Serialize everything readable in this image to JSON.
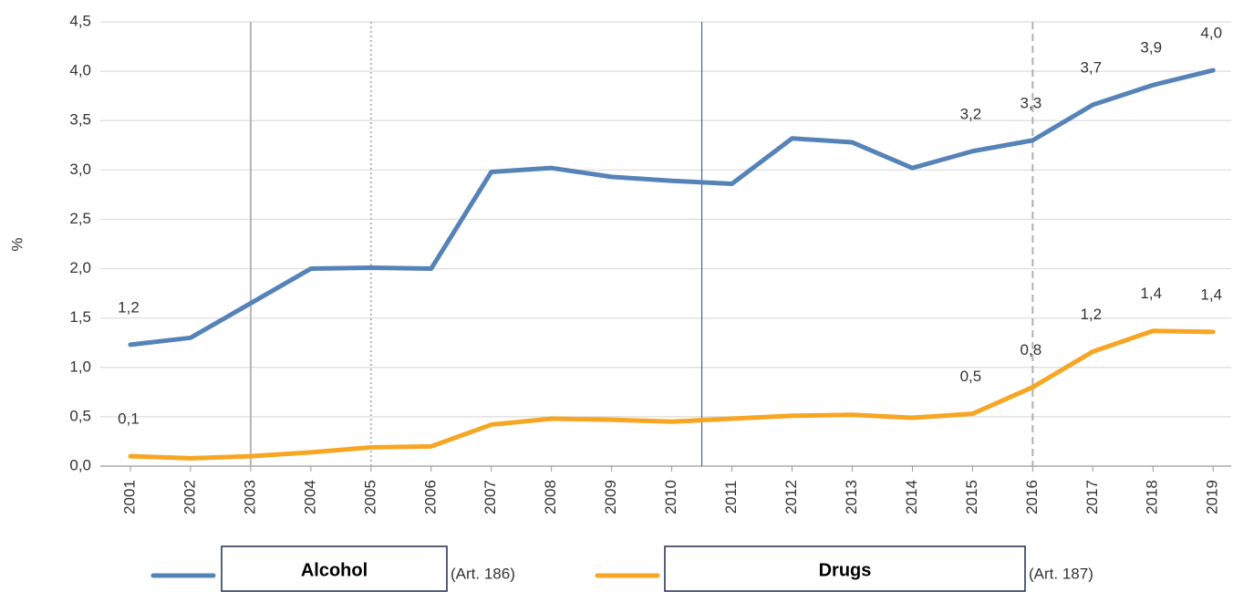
{
  "chart_data": {
    "type": "line",
    "y_label": "%",
    "x": [
      2001,
      2002,
      2003,
      2004,
      2005,
      2006,
      2007,
      2008,
      2009,
      2010,
      2011,
      2012,
      2013,
      2014,
      2015,
      2016,
      2017,
      2018,
      2019
    ],
    "xlim": [
      2000.5,
      2019.3
    ],
    "xticks": [
      2001,
      2002,
      2003,
      2004,
      2005,
      2006,
      2007,
      2008,
      2009,
      2010,
      2011,
      2012,
      2013,
      2014,
      2015,
      2016,
      2017,
      2018,
      2019
    ],
    "ylim": [
      0,
      4.5
    ],
    "yticks": [
      {
        "value": 0,
        "label": "0,0"
      },
      {
        "value": 0.5,
        "label": "0,5"
      },
      {
        "value": 1,
        "label": "1,0"
      },
      {
        "value": 1.5,
        "label": "1,5"
      },
      {
        "value": 2,
        "label": "2,0"
      },
      {
        "value": 2.5,
        "label": "2,5"
      },
      {
        "value": 3,
        "label": "3,0"
      },
      {
        "value": 3.5,
        "label": "3,5"
      },
      {
        "value": 4,
        "label": "4,0"
      },
      {
        "value": 4.5,
        "label": "4,5"
      }
    ],
    "grid": true,
    "series": [
      {
        "name": "Alcohol",
        "legend_note": "(Art. 186)",
        "color": "#5583b8",
        "values": [
          1.23,
          1.3,
          1.65,
          2.0,
          2.01,
          2.0,
          2.98,
          3.02,
          2.93,
          2.89,
          2.86,
          3.32,
          3.28,
          3.02,
          3.19,
          3.3,
          3.66,
          3.86,
          4.01
        ],
        "value_labels": [
          "1,2",
          null,
          null,
          null,
          null,
          null,
          null,
          null,
          null,
          null,
          null,
          null,
          null,
          null,
          "3,2",
          "3,3",
          "3,7",
          "3,9",
          "4,0"
        ]
      },
      {
        "name": "Drugs",
        "legend_note": "(Art. 187)",
        "color": "#f6a623",
        "values": [
          0.1,
          0.08,
          0.1,
          0.14,
          0.19,
          0.2,
          0.42,
          0.48,
          0.47,
          0.45,
          0.48,
          0.51,
          0.52,
          0.49,
          0.53,
          0.8,
          1.16,
          1.37,
          1.36
        ],
        "value_labels": [
          "0,1",
          null,
          null,
          null,
          null,
          null,
          null,
          null,
          null,
          null,
          null,
          null,
          null,
          null,
          "0,5",
          "0,8",
          "1,2",
          "1,4",
          "1,4"
        ]
      }
    ],
    "vlines": [
      {
        "x": 2003,
        "style": "solid",
        "color": "#b5b5b5"
      },
      {
        "x": 2005,
        "style": "dotted",
        "color": "#b5b5b5"
      },
      {
        "x": 2010.5,
        "style": "solid",
        "color": "#1f4e8c"
      },
      {
        "x": 2016,
        "style": "dashed",
        "color": "#b0b0b0"
      }
    ]
  }
}
